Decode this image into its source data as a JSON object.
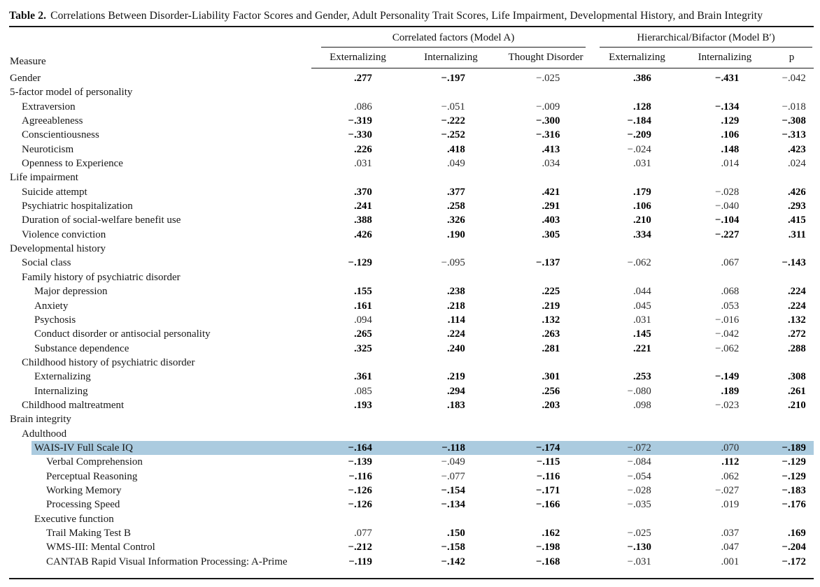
{
  "title": {
    "label": "Table 2.",
    "text": "Correlations Between Disorder-Liability Factor Scores and Gender, Adult Personality Trait Scores, Life Impairment, Developmental History, and Brain Integrity"
  },
  "colors": {
    "highlight": "#abcbdf"
  },
  "table": {
    "measure_header": "Measure",
    "groups": [
      {
        "label": "Correlated factors (Model A)",
        "columns": [
          "Externalizing",
          "Internalizing",
          "Thought Disorder"
        ]
      },
      {
        "label": "Hierarchical/Bifactor (Model B′)",
        "columns": [
          "Externalizing",
          "Internalizing",
          "p"
        ]
      }
    ],
    "rows": [
      {
        "label": "Gender",
        "indent": 0,
        "values": [
          ".277",
          "−.197",
          "−.025",
          ".386",
          "−.431",
          "−.042"
        ],
        "bold": [
          1,
          1,
          0,
          1,
          1,
          0
        ],
        "highlight": false
      },
      {
        "label": "5-factor model of personality",
        "indent": 0,
        "values": null,
        "bold": null,
        "highlight": false
      },
      {
        "label": "Extraversion",
        "indent": 1,
        "values": [
          ".086",
          "−.051",
          "−.009",
          ".128",
          "−.134",
          "−.018"
        ],
        "bold": [
          0,
          0,
          0,
          1,
          1,
          0
        ],
        "highlight": false
      },
      {
        "label": "Agreeableness",
        "indent": 1,
        "values": [
          "−.319",
          "−.222",
          "−.300",
          "−.184",
          ".129",
          "−.308"
        ],
        "bold": [
          1,
          1,
          1,
          1,
          1,
          1
        ],
        "highlight": false
      },
      {
        "label": "Conscientiousness",
        "indent": 1,
        "values": [
          "−.330",
          "−.252",
          "−.316",
          "−.209",
          ".106",
          "−.313"
        ],
        "bold": [
          1,
          1,
          1,
          1,
          1,
          1
        ],
        "highlight": false
      },
      {
        "label": "Neuroticism",
        "indent": 1,
        "values": [
          ".226",
          ".418",
          ".413",
          "−.024",
          ".148",
          ".423"
        ],
        "bold": [
          1,
          1,
          1,
          0,
          1,
          1
        ],
        "highlight": false
      },
      {
        "label": "Openness to Experience",
        "indent": 1,
        "values": [
          ".031",
          ".049",
          ".034",
          ".031",
          ".014",
          ".024"
        ],
        "bold": [
          0,
          0,
          0,
          0,
          0,
          0
        ],
        "highlight": false
      },
      {
        "label": "Life impairment",
        "indent": 0,
        "values": null,
        "bold": null,
        "highlight": false
      },
      {
        "label": "Suicide attempt",
        "indent": 1,
        "values": [
          ".370",
          ".377",
          ".421",
          ".179",
          "−.028",
          ".426"
        ],
        "bold": [
          1,
          1,
          1,
          1,
          0,
          1
        ],
        "highlight": false
      },
      {
        "label": "Psychiatric hospitalization",
        "indent": 1,
        "values": [
          ".241",
          ".258",
          ".291",
          ".106",
          "−.040",
          ".293"
        ],
        "bold": [
          1,
          1,
          1,
          1,
          0,
          1
        ],
        "highlight": false
      },
      {
        "label": "Duration of social-welfare benefit use",
        "indent": 1,
        "values": [
          ".388",
          ".326",
          ".403",
          ".210",
          "−.104",
          ".415"
        ],
        "bold": [
          1,
          1,
          1,
          1,
          1,
          1
        ],
        "highlight": false
      },
      {
        "label": "Violence conviction",
        "indent": 1,
        "values": [
          ".426",
          ".190",
          ".305",
          ".334",
          "−.227",
          ".311"
        ],
        "bold": [
          1,
          1,
          1,
          1,
          1,
          1
        ],
        "highlight": false
      },
      {
        "label": "Developmental history",
        "indent": 0,
        "values": null,
        "bold": null,
        "highlight": false
      },
      {
        "label": "Social class",
        "indent": 1,
        "values": [
          "−.129",
          "−.095",
          "−.137",
          "−.062",
          ".067",
          "−.143"
        ],
        "bold": [
          1,
          0,
          1,
          0,
          0,
          1
        ],
        "highlight": false
      },
      {
        "label": "Family history of psychiatric disorder",
        "indent": 1,
        "values": null,
        "bold": null,
        "highlight": false
      },
      {
        "label": "Major depression",
        "indent": 2,
        "values": [
          ".155",
          ".238",
          ".225",
          ".044",
          ".068",
          ".224"
        ],
        "bold": [
          1,
          1,
          1,
          0,
          0,
          1
        ],
        "highlight": false
      },
      {
        "label": "Anxiety",
        "indent": 2,
        "values": [
          ".161",
          ".218",
          ".219",
          ".045",
          ".053",
          ".224"
        ],
        "bold": [
          1,
          1,
          1,
          0,
          0,
          1
        ],
        "highlight": false
      },
      {
        "label": "Psychosis",
        "indent": 2,
        "values": [
          ".094",
          ".114",
          ".132",
          ".031",
          "−.016",
          ".132"
        ],
        "bold": [
          0,
          1,
          1,
          0,
          0,
          1
        ],
        "highlight": false
      },
      {
        "label": "Conduct disorder or antisocial personality",
        "indent": 2,
        "values": [
          ".265",
          ".224",
          ".263",
          ".145",
          "−.042",
          ".272"
        ],
        "bold": [
          1,
          1,
          1,
          1,
          0,
          1
        ],
        "highlight": false
      },
      {
        "label": "Substance dependence",
        "indent": 2,
        "values": [
          ".325",
          ".240",
          ".281",
          ".221",
          "−.062",
          ".288"
        ],
        "bold": [
          1,
          1,
          1,
          1,
          0,
          1
        ],
        "highlight": false
      },
      {
        "label": "Childhood history of psychiatric disorder",
        "indent": 1,
        "values": null,
        "bold": null,
        "highlight": false
      },
      {
        "label": "Externalizing",
        "indent": 2,
        "values": [
          ".361",
          ".219",
          ".301",
          ".253",
          "−.149",
          ".308"
        ],
        "bold": [
          1,
          1,
          1,
          1,
          1,
          1
        ],
        "highlight": false
      },
      {
        "label": "Internalizing",
        "indent": 2,
        "values": [
          ".085",
          ".294",
          ".256",
          "−.080",
          ".189",
          ".261"
        ],
        "bold": [
          0,
          1,
          1,
          0,
          1,
          1
        ],
        "highlight": false
      },
      {
        "label": "Childhood maltreatment",
        "indent": 1,
        "values": [
          ".193",
          ".183",
          ".203",
          ".098",
          "−.023",
          ".210"
        ],
        "bold": [
          1,
          1,
          1,
          0,
          0,
          1
        ],
        "highlight": false
      },
      {
        "label": "Brain integrity",
        "indent": 0,
        "values": null,
        "bold": null,
        "highlight": false
      },
      {
        "label": "Adulthood",
        "indent": 1,
        "values": null,
        "bold": null,
        "highlight": false
      },
      {
        "label": "WAIS-IV Full Scale IQ",
        "indent": 2,
        "values": [
          "−.164",
          "−.118",
          "−.174",
          "−.072",
          ".070",
          "−.189"
        ],
        "bold": [
          1,
          1,
          1,
          0,
          0,
          1
        ],
        "highlight": true
      },
      {
        "label": "Verbal Comprehension",
        "indent": 3,
        "values": [
          "−.139",
          "−.049",
          "−.115",
          "−.084",
          ".112",
          "−.129"
        ],
        "bold": [
          1,
          0,
          1,
          0,
          1,
          1
        ],
        "highlight": false
      },
      {
        "label": "Perceptual Reasoning",
        "indent": 3,
        "values": [
          "−.116",
          "−.077",
          "−.116",
          "−.054",
          ".062",
          "−.129"
        ],
        "bold": [
          1,
          0,
          1,
          0,
          0,
          1
        ],
        "highlight": false
      },
      {
        "label": "Working Memory",
        "indent": 3,
        "values": [
          "−.126",
          "−.154",
          "−.171",
          "−.028",
          "−.027",
          "−.183"
        ],
        "bold": [
          1,
          1,
          1,
          0,
          0,
          1
        ],
        "highlight": false
      },
      {
        "label": "Processing Speed",
        "indent": 3,
        "values": [
          "−.126",
          "−.134",
          "−.166",
          "−.035",
          ".019",
          "−.176"
        ],
        "bold": [
          1,
          1,
          1,
          0,
          0,
          1
        ],
        "highlight": false
      },
      {
        "label": "Executive function",
        "indent": 2,
        "values": null,
        "bold": null,
        "highlight": false
      },
      {
        "label": "Trail Making Test B",
        "indent": 3,
        "values": [
          ".077",
          ".150",
          ".162",
          "−.025",
          ".037",
          ".169"
        ],
        "bold": [
          0,
          1,
          1,
          0,
          0,
          1
        ],
        "highlight": false
      },
      {
        "label": "WMS-III: Mental Control",
        "indent": 3,
        "values": [
          "−.212",
          "−.158",
          "−.198",
          "−.130",
          ".047",
          "−.204"
        ],
        "bold": [
          1,
          1,
          1,
          1,
          0,
          1
        ],
        "highlight": false
      },
      {
        "label": "CANTAB Rapid Visual Information Processing: A-Prime",
        "indent": 3,
        "values": [
          "−.119",
          "−.142",
          "−.168",
          "−.031",
          ".001",
          "−.172"
        ],
        "bold": [
          1,
          1,
          1,
          0,
          0,
          1
        ],
        "highlight": false
      }
    ]
  }
}
